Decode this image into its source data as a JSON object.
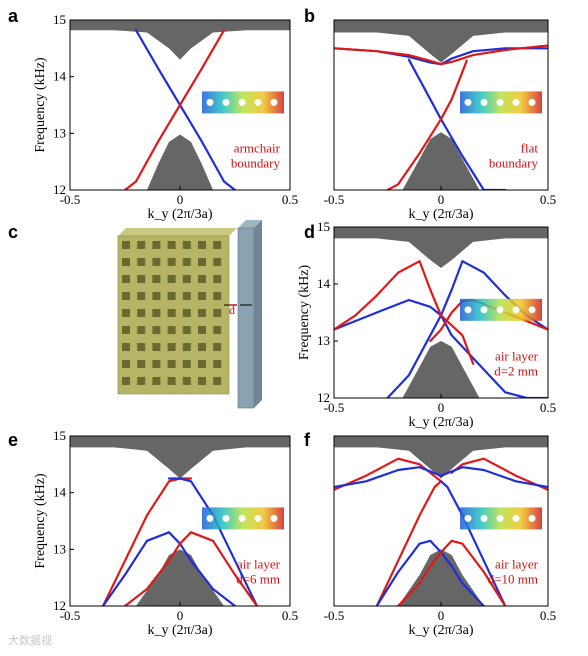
{
  "figure": {
    "watermark": "大数据视",
    "inset_model_description": "3D model of a rectangular phononic crystal slab with square holes and a vertical plate at gap d"
  },
  "chart_data": [
    {
      "panel": "a",
      "type": "line",
      "ylabel": "Frequency (kHz)",
      "xlabel": "k_y (2π/3a)",
      "xlim": [
        -0.5,
        0.5
      ],
      "ylim": [
        12,
        15
      ],
      "xticks": [
        "-0.5",
        "0",
        "0.5"
      ],
      "yticks": [
        "12",
        "13",
        "14",
        "15"
      ],
      "annotation": [
        "armchair",
        "boundary"
      ],
      "band_top_edge": {
        "x": [
          -0.5,
          -0.3,
          -0.15,
          -0.05,
          0,
          0.05,
          0.15,
          0.3,
          0.5
        ],
        "y": [
          14.82,
          14.82,
          14.78,
          14.5,
          14.3,
          14.5,
          14.78,
          14.82,
          14.82
        ]
      },
      "band_bottom_edge": {
        "x": [
          -0.15,
          -0.1,
          -0.05,
          0,
          0.05,
          0.1,
          0.15
        ],
        "y": [
          12,
          12.45,
          12.85,
          12.98,
          12.85,
          12.45,
          12
        ]
      },
      "series": [
        {
          "color": "#1f2fd8",
          "x": [
            -0.2,
            -0.1,
            0,
            0.1,
            0.2,
            0.25
          ],
          "y": [
            14.82,
            14.15,
            13.5,
            12.85,
            12.15,
            12
          ]
        },
        {
          "color": "#e01818",
          "x": [
            -0.25,
            -0.2,
            -0.1,
            0,
            0.1,
            0.2
          ],
          "y": [
            12,
            12.15,
            12.85,
            13.5,
            14.15,
            14.82
          ]
        }
      ]
    },
    {
      "panel": "b",
      "type": "line",
      "xlabel": "k_y (2π/3a)",
      "xlim": [
        -0.5,
        0.5
      ],
      "ylim": [
        12,
        15
      ],
      "xticks": [
        "-0.5",
        "0",
        "0.5"
      ],
      "yticks": [],
      "annotation": [
        "flat",
        "boundary"
      ],
      "band_top_edge": {
        "x": [
          -0.5,
          -0.3,
          -0.15,
          -0.05,
          0,
          0.05,
          0.15,
          0.3,
          0.5
        ],
        "y": [
          14.78,
          14.78,
          14.72,
          14.4,
          14.25,
          14.4,
          14.72,
          14.78,
          14.78
        ]
      },
      "band_bottom_edge": {
        "x": [
          -0.18,
          -0.1,
          -0.05,
          0,
          0.05,
          0.1,
          0.18
        ],
        "y": [
          12,
          12.55,
          12.9,
          13.02,
          12.9,
          12.55,
          12
        ]
      },
      "series": [
        {
          "color": "#1f2fd8",
          "x": [
            -0.5,
            -0.3,
            -0.15,
            -0.05,
            0,
            0.05,
            0.15,
            0.3,
            0.5
          ],
          "y": [
            14.5,
            14.45,
            14.35,
            14.25,
            14.22,
            14.32,
            14.45,
            14.5,
            14.5
          ]
        },
        {
          "color": "#1f2fd8",
          "x": [
            -0.15,
            -0.05,
            0,
            0.1,
            0.2,
            0.3
          ],
          "y": [
            14.3,
            13.6,
            13.25,
            12.6,
            12,
            12
          ]
        },
        {
          "color": "#e01818",
          "x": [
            -0.5,
            -0.3,
            -0.15,
            -0.05,
            0,
            0.05,
            0.15,
            0.3,
            0.5
          ],
          "y": [
            14.5,
            14.45,
            14.38,
            14.28,
            14.22,
            14.26,
            14.38,
            14.47,
            14.55
          ]
        },
        {
          "color": "#e01818",
          "x": [
            -0.25,
            -0.2,
            -0.1,
            0,
            0.05,
            0.12
          ],
          "y": [
            12,
            12.1,
            12.65,
            13.25,
            13.6,
            14.28
          ]
        }
      ]
    },
    {
      "panel": "d",
      "type": "line",
      "ylabel": "Frequency (kHz)",
      "xlabel": "k_y (2π/3a)",
      "xlim": [
        -0.5,
        0.5
      ],
      "ylim": [
        12,
        15
      ],
      "xticks": [
        "-0.5",
        "0",
        "0.5"
      ],
      "yticks": [
        "12",
        "13",
        "14",
        "15"
      ],
      "annotation": [
        "air layer",
        "d=2 mm"
      ],
      "band_top_edge": {
        "x": [
          -0.5,
          -0.3,
          -0.15,
          -0.05,
          0,
          0.05,
          0.15,
          0.3,
          0.5
        ],
        "y": [
          14.8,
          14.8,
          14.74,
          14.42,
          14.28,
          14.42,
          14.74,
          14.8,
          14.8
        ]
      },
      "band_bottom_edge": {
        "x": [
          -0.18,
          -0.1,
          -0.05,
          0,
          0.05,
          0.1,
          0.18
        ],
        "y": [
          12,
          12.55,
          12.9,
          13.0,
          12.9,
          12.55,
          12
        ]
      },
      "series": [
        {
          "color": "#1f2fd8",
          "x": [
            -0.5,
            -0.3,
            -0.15,
            -0.05,
            0,
            0.05,
            0.1,
            0.2,
            0.3,
            0.4,
            0.5
          ],
          "y": [
            13.2,
            13.5,
            13.72,
            13.6,
            13.45,
            13.1,
            12.9,
            12.5,
            12.1,
            12,
            12
          ]
        },
        {
          "color": "#1f2fd8",
          "x": [
            -0.25,
            -0.15,
            -0.05,
            0,
            0.05,
            0.1,
            0.2,
            0.3,
            0.4,
            0.5
          ],
          "y": [
            12,
            12.4,
            13.1,
            13.45,
            13.9,
            14.4,
            14.2,
            13.8,
            13.45,
            13.2
          ]
        },
        {
          "color": "#e01818",
          "x": [
            -0.5,
            -0.4,
            -0.3,
            -0.2,
            -0.1,
            -0.05,
            0,
            0.1,
            0.15
          ],
          "y": [
            13.2,
            13.45,
            13.8,
            14.2,
            14.4,
            13.9,
            13.45,
            13.1,
            12.6
          ]
        },
        {
          "color": "#e01818",
          "x": [
            -0.05,
            0,
            0.05,
            0.1,
            0.15,
            0.3,
            0.5
          ],
          "y": [
            13.0,
            13.2,
            13.5,
            13.7,
            13.72,
            13.5,
            13.2
          ]
        }
      ]
    },
    {
      "panel": "e",
      "type": "line",
      "ylabel": "Frequency (kHz)",
      "xlabel": "k_y (2π/3a)",
      "xlim": [
        -0.5,
        0.5
      ],
      "ylim": [
        12,
        15
      ],
      "xticks": [
        "-0.5",
        "0",
        "0.5"
      ],
      "yticks": [
        "12",
        "13",
        "14",
        "15"
      ],
      "annotation": [
        "air layer",
        "d=6 mm"
      ],
      "band_top_edge": {
        "x": [
          -0.5,
          -0.3,
          -0.15,
          -0.05,
          0,
          0.05,
          0.15,
          0.3,
          0.5
        ],
        "y": [
          14.8,
          14.8,
          14.74,
          14.42,
          14.25,
          14.42,
          14.74,
          14.8,
          14.8
        ]
      },
      "band_bottom_edge": {
        "x": [
          -0.2,
          -0.1,
          -0.05,
          0,
          0.05,
          0.1,
          0.2
        ],
        "y": [
          12,
          12.55,
          12.9,
          13.0,
          12.9,
          12.55,
          12
        ]
      },
      "series": [
        {
          "color": "#e01818",
          "x": [
            -0.35,
            -0.25,
            -0.15,
            -0.05,
            0,
            0.05
          ],
          "y": [
            12,
            12.8,
            13.6,
            14.2,
            14.25,
            14.25
          ]
        },
        {
          "color": "#1f2fd8",
          "x": [
            -0.05,
            0,
            0.05,
            0.15,
            0.25,
            0.35
          ],
          "y": [
            14.25,
            14.25,
            14.2,
            13.6,
            12.8,
            12
          ]
        },
        {
          "color": "#1f2fd8",
          "x": [
            -0.35,
            -0.25,
            -0.15,
            -0.05,
            0,
            0.05,
            0.15,
            0.25
          ],
          "y": [
            12,
            12.55,
            13.15,
            13.3,
            13.1,
            12.8,
            12.3,
            12
          ]
        },
        {
          "color": "#e01818",
          "x": [
            -0.25,
            -0.15,
            -0.05,
            0,
            0.05,
            0.15,
            0.25,
            0.35
          ],
          "y": [
            12,
            12.3,
            12.8,
            13.1,
            13.3,
            13.15,
            12.55,
            12
          ]
        }
      ]
    },
    {
      "panel": "f",
      "type": "line",
      "xlabel": "k_y (2π/3a)",
      "xlim": [
        -0.5,
        0.5
      ],
      "ylim": [
        12,
        15
      ],
      "xticks": [
        "-0.5",
        "0",
        "0.5"
      ],
      "yticks": [],
      "annotation": [
        "air layer",
        "d=10 mm"
      ],
      "band_top_edge": {
        "x": [
          -0.5,
          -0.3,
          -0.15,
          -0.05,
          0,
          0.05,
          0.15,
          0.3,
          0.5
        ],
        "y": [
          14.8,
          14.8,
          14.74,
          14.42,
          14.25,
          14.42,
          14.74,
          14.8,
          14.8
        ]
      },
      "band_bottom_edge": {
        "x": [
          -0.2,
          -0.1,
          -0.05,
          0,
          0.05,
          0.1,
          0.2
        ],
        "y": [
          12,
          12.55,
          12.9,
          13.0,
          12.9,
          12.55,
          12
        ]
      },
      "series": [
        {
          "color": "#e01818",
          "x": [
            -0.5,
            -0.35,
            -0.2,
            -0.1,
            0
          ],
          "y": [
            14.05,
            14.3,
            14.6,
            14.5,
            14.2
          ]
        },
        {
          "color": "#e01818",
          "x": [
            0.05,
            0.1,
            0.2,
            0.35,
            0.5
          ],
          "y": [
            14.35,
            14.5,
            14.6,
            14.3,
            14.05
          ]
        },
        {
          "color": "#1f2fd8",
          "x": [
            -0.5,
            -0.35,
            -0.2,
            -0.1,
            0,
            0.1,
            0.2,
            0.35,
            0.5
          ],
          "y": [
            14.1,
            14.2,
            14.4,
            14.45,
            14.3,
            14.45,
            14.4,
            14.2,
            14.1
          ]
        },
        {
          "color": "#e01818",
          "x": [
            -0.3,
            -0.2,
            -0.1,
            -0.03,
            0
          ],
          "y": [
            12,
            12.8,
            13.6,
            14.1,
            14.2
          ]
        },
        {
          "color": "#1f2fd8",
          "x": [
            0,
            0.03,
            0.1,
            0.2,
            0.3
          ],
          "y": [
            14.2,
            14.1,
            13.6,
            12.8,
            12
          ]
        },
        {
          "color": "#1f2fd8",
          "x": [
            -0.3,
            -0.2,
            -0.1,
            -0.05,
            0,
            0.05,
            0.1,
            0.2
          ],
          "y": [
            12,
            12.6,
            13.1,
            13.15,
            12.95,
            12.7,
            12.4,
            12
          ]
        },
        {
          "color": "#e01818",
          "x": [
            -0.2,
            -0.1,
            -0.05,
            0,
            0.05,
            0.1,
            0.2,
            0.3
          ],
          "y": [
            12,
            12.4,
            12.7,
            12.95,
            13.15,
            13.1,
            12.6,
            12
          ]
        }
      ]
    }
  ]
}
